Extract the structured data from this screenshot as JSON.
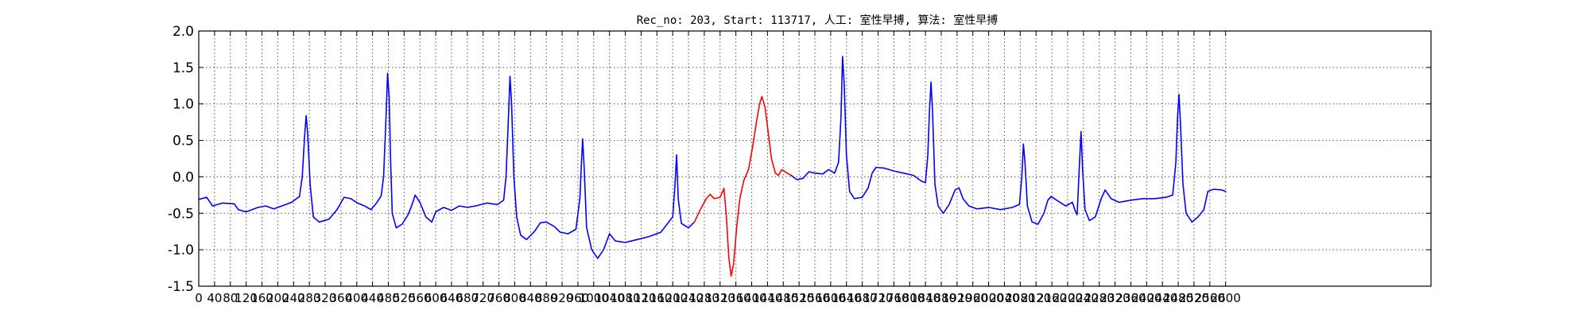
{
  "chart_data": {
    "type": "line",
    "title": "Rec_no: 203, Start: 113717, 人工: 室性早搏, 算法: 室性早搏",
    "xlabel": "",
    "ylabel": "",
    "xlim": [
      0,
      3120
    ],
    "ylim": [
      -1.5,
      2.0
    ],
    "y_ticks": [
      "2.0",
      "1.5",
      "1.0",
      "0.5",
      "0.0",
      "-0.5",
      "-1.0",
      "-1.5"
    ],
    "x_ticks": [
      "0",
      "40",
      "80",
      "120",
      "160",
      "200",
      "240",
      "280",
      "320",
      "360",
      "400",
      "440",
      "480",
      "520",
      "560",
      "600",
      "640",
      "680",
      "720",
      "760",
      "800",
      "840",
      "880",
      "920",
      "960",
      "1000",
      "1040",
      "1080",
      "1120",
      "1160",
      "1200",
      "1240",
      "1280",
      "1320",
      "1360",
      "1400",
      "1440",
      "1480",
      "1520",
      "1560",
      "1600",
      "1640",
      "1680",
      "1720",
      "1760",
      "1800",
      "1840",
      "1880",
      "1920",
      "1960",
      "2000",
      "2040",
      "2080",
      "2120",
      "2160",
      "2200",
      "2240",
      "2280",
      "2320",
      "2360",
      "2400",
      "2440",
      "2480",
      "2520",
      "2560",
      "2600"
    ],
    "grid": true,
    "colors": {
      "normal": "#0000ff",
      "highlight": "#ff0000",
      "axes": "#000000",
      "grid": "#555555"
    },
    "series": [
      {
        "color": "#0000ff",
        "points": [
          [
            0,
            -0.31
          ],
          [
            20,
            -0.28
          ],
          [
            35,
            -0.4
          ],
          [
            60,
            -0.36
          ],
          [
            90,
            -0.37
          ],
          [
            100,
            -0.45
          ],
          [
            120,
            -0.48
          ],
          [
            150,
            -0.42
          ],
          [
            170,
            -0.4
          ],
          [
            190,
            -0.44
          ],
          [
            210,
            -0.4
          ],
          [
            235,
            -0.35
          ],
          [
            255,
            -0.27
          ],
          [
            262,
            0.0
          ],
          [
            268,
            0.55
          ],
          [
            272,
            0.84
          ],
          [
            276,
            0.58
          ],
          [
            282,
            -0.1
          ],
          [
            290,
            -0.55
          ],
          [
            305,
            -0.62
          ],
          [
            330,
            -0.58
          ],
          [
            350,
            -0.45
          ],
          [
            368,
            -0.28
          ],
          [
            385,
            -0.3
          ],
          [
            402,
            -0.36
          ],
          [
            420,
            -0.4
          ],
          [
            436,
            -0.45
          ],
          [
            450,
            -0.36
          ],
          [
            462,
            -0.26
          ],
          [
            468,
            0.0
          ],
          [
            474,
            0.8
          ],
          [
            478,
            1.42
          ],
          [
            482,
            1.1
          ],
          [
            486,
            0.2
          ],
          [
            490,
            -0.5
          ],
          [
            500,
            -0.7
          ],
          [
            515,
            -0.65
          ],
          [
            530,
            -0.52
          ],
          [
            540,
            -0.38
          ],
          [
            548,
            -0.25
          ],
          [
            560,
            -0.35
          ],
          [
            575,
            -0.55
          ],
          [
            590,
            -0.62
          ],
          [
            600,
            -0.48
          ],
          [
            620,
            -0.42
          ],
          [
            640,
            -0.46
          ],
          [
            660,
            -0.4
          ],
          [
            680,
            -0.42
          ],
          [
            700,
            -0.4
          ],
          [
            730,
            -0.36
          ],
          [
            756,
            -0.38
          ],
          [
            772,
            -0.32
          ],
          [
            778,
            0.0
          ],
          [
            784,
            0.8
          ],
          [
            788,
            1.38
          ],
          [
            792,
            1.0
          ],
          [
            798,
            0.0
          ],
          [
            805,
            -0.55
          ],
          [
            815,
            -0.8
          ],
          [
            830,
            -0.86
          ],
          [
            850,
            -0.75
          ],
          [
            865,
            -0.63
          ],
          [
            880,
            -0.62
          ],
          [
            900,
            -0.68
          ],
          [
            915,
            -0.76
          ],
          [
            935,
            -0.78
          ],
          [
            955,
            -0.72
          ],
          [
            965,
            -0.3
          ],
          [
            969,
            0.2
          ],
          [
            972,
            0.52
          ],
          [
            976,
            0.1
          ],
          [
            982,
            -0.7
          ],
          [
            995,
            -1.0
          ],
          [
            1010,
            -1.12
          ],
          [
            1025,
            -1.0
          ],
          [
            1040,
            -0.78
          ],
          [
            1055,
            -0.88
          ],
          [
            1080,
            -0.9
          ],
          [
            1110,
            -0.86
          ],
          [
            1140,
            -0.82
          ],
          [
            1170,
            -0.76
          ],
          [
            1190,
            -0.62
          ],
          [
            1200,
            -0.55
          ],
          [
            1206,
            -0.1
          ],
          [
            1210,
            0.3
          ],
          [
            1214,
            -0.3
          ],
          [
            1222,
            -0.64
          ],
          [
            1240,
            -0.7
          ],
          [
            1255,
            -0.62
          ]
        ]
      },
      {
        "color": "#ff0000",
        "points": [
          [
            1255,
            -0.62
          ],
          [
            1270,
            -0.45
          ],
          [
            1285,
            -0.3
          ],
          [
            1295,
            -0.24
          ],
          [
            1305,
            -0.3
          ],
          [
            1320,
            -0.28
          ],
          [
            1330,
            -0.16
          ],
          [
            1336,
            -0.55
          ],
          [
            1342,
            -1.1
          ],
          [
            1348,
            -1.36
          ],
          [
            1354,
            -1.2
          ],
          [
            1362,
            -0.7
          ],
          [
            1370,
            -0.3
          ],
          [
            1380,
            -0.05
          ],
          [
            1392,
            0.1
          ],
          [
            1402,
            0.4
          ],
          [
            1412,
            0.75
          ],
          [
            1420,
            1.0
          ],
          [
            1426,
            1.1
          ],
          [
            1434,
            0.95
          ],
          [
            1442,
            0.6
          ],
          [
            1450,
            0.25
          ],
          [
            1460,
            0.05
          ],
          [
            1468,
            0.02
          ],
          [
            1476,
            0.1
          ],
          [
            1490,
            0.05
          ],
          [
            1500,
            0.02
          ]
        ]
      },
      {
        "color": "#0000ff",
        "points": [
          [
            1500,
            0.02
          ],
          [
            1515,
            -0.04
          ],
          [
            1530,
            -0.02
          ],
          [
            1545,
            0.07
          ],
          [
            1560,
            0.05
          ],
          [
            1580,
            0.04
          ],
          [
            1595,
            0.1
          ],
          [
            1610,
            0.05
          ],
          [
            1620,
            0.2
          ],
          [
            1626,
            0.8
          ],
          [
            1630,
            1.65
          ],
          [
            1634,
            1.3
          ],
          [
            1640,
            0.3
          ],
          [
            1648,
            -0.2
          ],
          [
            1660,
            -0.3
          ],
          [
            1680,
            -0.28
          ],
          [
            1695,
            -0.15
          ],
          [
            1705,
            0.05
          ],
          [
            1715,
            0.13
          ],
          [
            1735,
            0.12
          ],
          [
            1760,
            0.08
          ],
          [
            1785,
            0.05
          ],
          [
            1810,
            0.02
          ],
          [
            1830,
            -0.06
          ],
          [
            1840,
            -0.08
          ],
          [
            1846,
            0.3
          ],
          [
            1850,
            0.9
          ],
          [
            1854,
            1.3
          ],
          [
            1858,
            0.9
          ],
          [
            1864,
            -0.1
          ],
          [
            1872,
            -0.4
          ],
          [
            1885,
            -0.5
          ],
          [
            1900,
            -0.38
          ],
          [
            1915,
            -0.18
          ],
          [
            1925,
            -0.15
          ],
          [
            1935,
            -0.3
          ],
          [
            1950,
            -0.4
          ],
          [
            1970,
            -0.44
          ],
          [
            2000,
            -0.42
          ],
          [
            2030,
            -0.45
          ],
          [
            2060,
            -0.42
          ],
          [
            2078,
            -0.38
          ],
          [
            2084,
            0.0
          ],
          [
            2088,
            0.45
          ],
          [
            2092,
            0.2
          ],
          [
            2098,
            -0.4
          ],
          [
            2110,
            -0.62
          ],
          [
            2125,
            -0.65
          ],
          [
            2140,
            -0.5
          ],
          [
            2150,
            -0.32
          ],
          [
            2158,
            -0.27
          ],
          [
            2175,
            -0.33
          ],
          [
            2195,
            -0.4
          ],
          [
            2212,
            -0.35
          ],
          [
            2220,
            -0.48
          ],
          [
            2224,
            -0.52
          ],
          [
            2230,
            0.2
          ],
          [
            2234,
            0.62
          ],
          [
            2238,
            0.1
          ],
          [
            2244,
            -0.45
          ],
          [
            2255,
            -0.6
          ],
          [
            2270,
            -0.55
          ],
          [
            2285,
            -0.3
          ],
          [
            2295,
            -0.18
          ],
          [
            2310,
            -0.3
          ],
          [
            2330,
            -0.35
          ],
          [
            2360,
            -0.32
          ],
          [
            2390,
            -0.3
          ],
          [
            2420,
            -0.3
          ],
          [
            2450,
            -0.28
          ],
          [
            2466,
            -0.25
          ],
          [
            2474,
            0.2
          ],
          [
            2478,
            0.8
          ],
          [
            2482,
            1.13
          ],
          [
            2486,
            0.7
          ],
          [
            2492,
            -0.1
          ],
          [
            2500,
            -0.5
          ],
          [
            2515,
            -0.62
          ],
          [
            2530,
            -0.55
          ],
          [
            2545,
            -0.45
          ],
          [
            2555,
            -0.2
          ],
          [
            2570,
            -0.17
          ],
          [
            2590,
            -0.18
          ],
          [
            2600,
            -0.2
          ]
        ]
      }
    ]
  }
}
